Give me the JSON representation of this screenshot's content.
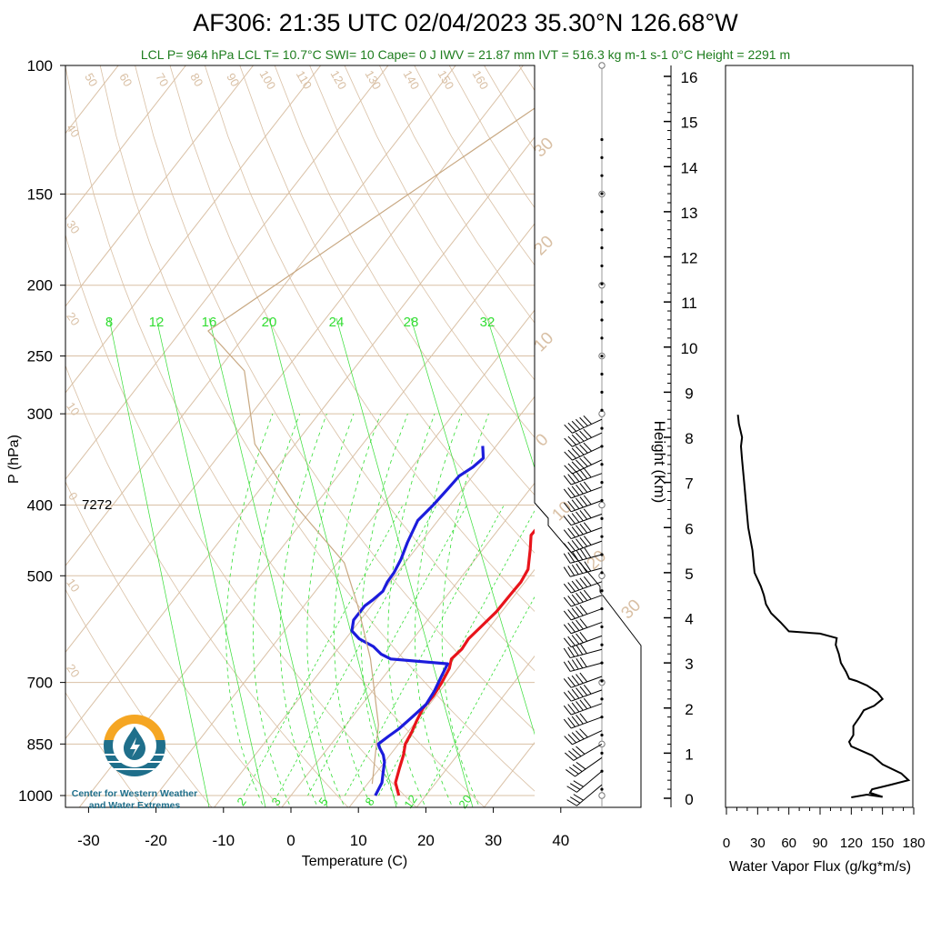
{
  "header": {
    "title": "AF306: 21:35 UTC 02/04/2023  35.30°N 126.68°W",
    "stats": "LCL P= 964 hPa  LCL T= 10.7°C  SWI= 10  Cape= 0 J  IWV = 21.87 mm  IVT = 516.3 kg m-1 s-1  0°C Height = 2291 m",
    "stats_color": "#1e7d1e"
  },
  "logo": {
    "line1": "Center for Western Weather",
    "line2": "and Water Extremes",
    "colors": {
      "sun": "#f5a623",
      "water": "#1f6f8b",
      "text": "#1f6f8b"
    }
  },
  "chart_data": [
    {
      "type": "line",
      "subtype": "skew-t",
      "xlabel": "Temperature (C)",
      "ylabel": "P (hPa)",
      "x_ticks": [
        -30,
        -20,
        -10,
        0,
        10,
        20,
        30,
        40
      ],
      "y_ticks": [
        1000,
        850,
        700,
        500,
        400,
        300,
        250,
        200,
        150,
        100
      ],
      "ylim": [
        1050,
        100
      ],
      "y_scale": "log",
      "annotation": "7272",
      "mixing_ratio_labels": [
        "8",
        "12",
        "16",
        "20",
        "24",
        "28",
        "32"
      ],
      "mixing_ratio_labels_bottom": [
        "2",
        "3",
        "5",
        "8",
        "12",
        "20"
      ],
      "dry_adiabat_labels": [
        "50",
        "60",
        "70",
        "80",
        "90",
        "100",
        "110",
        "120",
        "130",
        "140",
        "150",
        "160"
      ],
      "isotherm_labels_left": [
        "40",
        "30",
        "20",
        "10",
        "0",
        "10",
        "20"
      ],
      "isotherm_labels_right": [
        "30",
        "20",
        "10",
        "0",
        "10",
        "20",
        "30"
      ],
      "colors": {
        "temperature": "#e8141b",
        "dewpoint": "#1c1cdc",
        "parcel": "#c8a882",
        "mixing": "#33dd33",
        "grid": "#d9c0a5",
        "wind": "#000000"
      },
      "series": [
        {
          "name": "temperature",
          "points": [
            [
              16,
              1000
            ],
            [
              14,
              960
            ],
            [
              13,
              920
            ],
            [
              12,
              880
            ],
            [
              11,
              850
            ],
            [
              10.6,
              820
            ],
            [
              10,
              790
            ],
            [
              9.5,
              760
            ],
            [
              9.6,
              730
            ],
            [
              9.3,
              700
            ],
            [
              8.8,
              670
            ],
            [
              8,
              650
            ],
            [
              8.4,
              630
            ],
            [
              8.2,
              610
            ],
            [
              8.6,
              590
            ],
            [
              9.2,
              560
            ],
            [
              9.3,
              530
            ],
            [
              9.4,
              510
            ],
            [
              9,
              490
            ],
            [
              7,
              460
            ],
            [
              5.5,
              440
            ],
            [
              5.6,
              420
            ],
            [
              5.6,
              400
            ],
            [
              5,
              380
            ],
            [
              4.3,
              370
            ],
            [
              4.4,
              360
            ],
            [
              3.5,
              345
            ],
            [
              2,
              332
            ]
          ]
        },
        {
          "name": "dewpoint",
          "points": [
            [
              12.5,
              1000
            ],
            [
              12,
              960
            ],
            [
              11,
              930
            ],
            [
              10,
              900
            ],
            [
              9,
              880
            ],
            [
              7.6,
              860
            ],
            [
              7,
              850
            ],
            [
              7.6,
              830
            ],
            [
              8.3,
              810
            ],
            [
              8.9,
              780
            ],
            [
              9.5,
              750
            ],
            [
              9.2,
              720
            ],
            [
              8.6,
              690
            ],
            [
              8,
              660
            ],
            [
              -1,
              650
            ],
            [
              -3,
              640
            ],
            [
              -5,
              625
            ],
            [
              -8,
              610
            ],
            [
              -10,
              595
            ],
            [
              -11,
              575
            ],
            [
              -11,
              560
            ],
            [
              -11,
              550
            ],
            [
              -10.5,
              540
            ],
            [
              -10,
              525
            ],
            [
              -10.4,
              510
            ],
            [
              -10.5,
              495
            ],
            [
              -11,
              475
            ],
            [
              -12,
              450
            ],
            [
              -13,
              420
            ],
            [
              -12.5,
              400
            ],
            [
              -12.2,
              380
            ],
            [
              -12,
              365
            ],
            [
              -11,
              355
            ],
            [
              -10.5,
              345
            ],
            [
              -12,
              332
            ]
          ]
        },
        {
          "name": "parcel",
          "points": [
            [
              10.7,
              964
            ],
            [
              4.8,
              800
            ],
            [
              -4,
              650
            ],
            [
              -12,
              550
            ],
            [
              -19,
              480
            ],
            [
              -33,
              400
            ],
            [
              -46,
              330
            ],
            [
              -56,
              262
            ],
            [
              -66,
              231
            ],
            [
              -39,
              100
            ]
          ]
        }
      ],
      "wind_height_km": [
        0.3,
        0.6,
        0.9,
        1.2,
        1.5,
        1.8,
        2.1,
        2.4,
        2.7,
        3.0,
        3.3,
        3.6,
        3.9,
        4.2,
        4.5,
        4.8,
        5.1,
        5.4,
        5.7,
        6.0,
        6.3,
        6.6,
        6.9,
        7.2,
        7.5,
        7.8,
        8.1,
        8.4
      ],
      "wind_speed_kt": [
        25,
        30,
        35,
        40,
        45,
        50,
        55,
        55,
        50,
        50,
        50,
        50,
        50,
        50,
        55,
        55,
        60,
        60,
        60,
        65,
        65,
        70,
        70,
        70,
        75,
        75,
        70,
        70
      ],
      "wind_dir_deg": [
        230,
        230,
        235,
        240,
        245,
        250,
        250,
        250,
        250,
        255,
        255,
        250,
        250,
        250,
        250,
        250,
        255,
        255,
        250,
        250,
        250,
        250,
        250,
        250,
        245,
        245,
        245,
        245
      ]
    },
    {
      "type": "line",
      "xlabel": "Water Vapor Flux (g/kg*m/s)",
      "ylabel": "Height (Km)",
      "x_ticks": [
        0,
        30,
        60,
        90,
        120,
        150,
        180
      ],
      "y_ticks": [
        0,
        1,
        2,
        3,
        4,
        5,
        6,
        7,
        8,
        9,
        10,
        11,
        12,
        13,
        14,
        15,
        16
      ],
      "xlim": [
        0,
        180
      ],
      "ylim": [
        -0.2,
        16.4
      ],
      "series": [
        {
          "name": "flux",
          "points": [
            [
              120,
              0.02
            ],
            [
              135,
              0.08
            ],
            [
              150,
              0.03
            ],
            [
              138,
              0.12
            ],
            [
              140,
              0.2
            ],
            [
              158,
              0.3
            ],
            [
              175,
              0.4
            ],
            [
              168,
              0.55
            ],
            [
              150,
              0.75
            ],
            [
              140,
              0.95
            ],
            [
              130,
              1.05
            ],
            [
              120,
              1.15
            ],
            [
              118,
              1.25
            ],
            [
              122,
              1.4
            ],
            [
              122,
              1.6
            ],
            [
              128,
              1.8
            ],
            [
              132,
              1.95
            ],
            [
              142,
              2.05
            ],
            [
              150,
              2.2
            ],
            [
              145,
              2.35
            ],
            [
              135,
              2.5
            ],
            [
              125,
              2.6
            ],
            [
              118,
              2.65
            ],
            [
              115,
              2.8
            ],
            [
              110,
              3.0
            ],
            [
              108,
              3.2
            ],
            [
              105,
              3.4
            ],
            [
              106,
              3.55
            ],
            [
              90,
              3.65
            ],
            [
              60,
              3.7
            ],
            [
              52,
              3.9
            ],
            [
              43,
              4.1
            ],
            [
              38,
              4.3
            ],
            [
              36,
              4.5
            ],
            [
              33,
              4.7
            ],
            [
              31,
              4.8
            ],
            [
              27,
              5.0
            ],
            [
              25,
              5.5
            ],
            [
              21,
              6.0
            ],
            [
              19,
              6.5
            ],
            [
              17,
              7.0
            ],
            [
              15,
              7.5
            ],
            [
              14,
              7.8
            ],
            [
              15,
              8.0
            ],
            [
              12,
              8.3
            ],
            [
              11,
              8.5
            ]
          ]
        }
      ]
    }
  ]
}
